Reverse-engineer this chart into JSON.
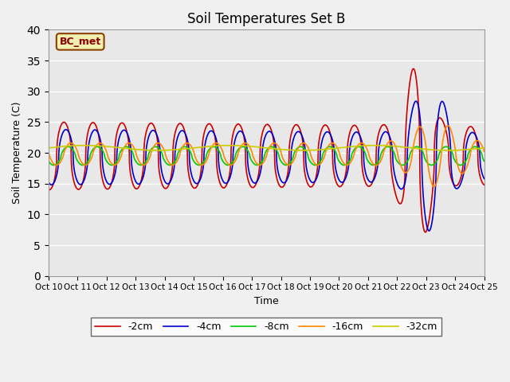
{
  "title": "Soil Temperatures Set B",
  "xlabel": "Time",
  "ylabel": "Soil Temperature (C)",
  "ylim": [
    0,
    40
  ],
  "annotation": "BC_met",
  "legend_labels": [
    "-2cm",
    "-4cm",
    "-8cm",
    "-16cm",
    "-32cm"
  ],
  "line_colors": [
    "#cc0000",
    "#0000cc",
    "#00cc00",
    "#ff8800",
    "#cccc00"
  ],
  "bg_color": "#e8e8e8",
  "fig_color": "#f0f0f0",
  "x_tick_labels": [
    "Oct 10",
    "Oct 11",
    "Oct 12",
    "Oct 13",
    "Oct 14",
    "Oct 15",
    "Oct 16",
    "Oct 17",
    "Oct 18",
    "Oct 19",
    "Oct 20",
    "Oct 21",
    "Oct 22",
    "Oct 23",
    "Oct 24",
    "Oct 25"
  ],
  "n_days": 15,
  "samples_per_day": 120
}
